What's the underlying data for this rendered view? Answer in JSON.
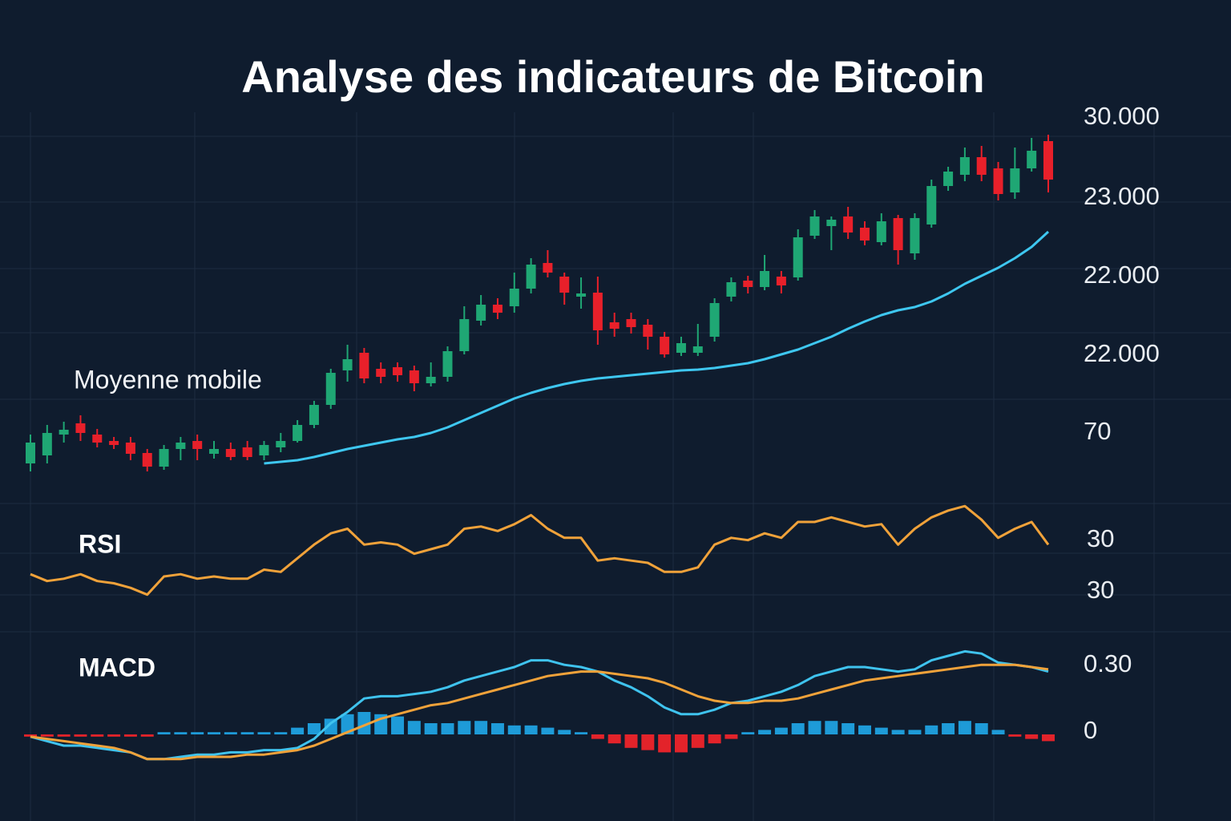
{
  "chart_data": [
    {
      "type": "candlestick",
      "title": "Analyse des indicateurs de Bitcoin",
      "categories": [
        null,
        null,
        null,
        null,
        null,
        null,
        null,
        null,
        null,
        null,
        null,
        null,
        null,
        null,
        null,
        null,
        null,
        null,
        null,
        null,
        null,
        null,
        null,
        null,
        null,
        null,
        null,
        null,
        null,
        null,
        null,
        null,
        null,
        null,
        null,
        null,
        null,
        null,
        null,
        null,
        null,
        null,
        null,
        null,
        null,
        null,
        null,
        null,
        null,
        null,
        null,
        null,
        null,
        null,
        null,
        null,
        null,
        null,
        null,
        null,
        null,
        null
      ],
      "open": [
        20440,
        20640,
        21160,
        21440,
        21160,
        21000,
        20960,
        20700,
        20360,
        20800,
        21000,
        20680,
        20800,
        20840,
        20640,
        20840,
        21000,
        21400,
        21900,
        22760,
        23200,
        22800,
        22840,
        22760,
        22440,
        22600,
        23240,
        24000,
        24400,
        24360,
        24800,
        25440,
        25100,
        24600,
        24700,
        23960,
        24040,
        23900,
        23600,
        23200,
        23200,
        23600,
        24600,
        25000,
        24840,
        25100,
        25080,
        26120,
        26360,
        26600,
        26320,
        25960,
        26560,
        25680,
        26400,
        27360,
        27640,
        28080,
        27800,
        27200,
        27800,
        28480
      ],
      "high": [
        21160,
        21400,
        21480,
        21640,
        21300,
        21100,
        21100,
        20800,
        20900,
        21100,
        21160,
        21000,
        20960,
        21000,
        21000,
        21200,
        21520,
        22000,
        22800,
        23400,
        23320,
        22960,
        22960,
        22880,
        22960,
        23360,
        24360,
        24640,
        24560,
        25200,
        25560,
        25760,
        25200,
        25080,
        25100,
        24200,
        24200,
        24040,
        23720,
        23600,
        23920,
        24560,
        25080,
        25120,
        25640,
        25240,
        26280,
        26760,
        26600,
        26840,
        26480,
        26680,
        26640,
        26680,
        27520,
        27840,
        28320,
        28360,
        27960,
        28320,
        28560,
        28640
      ],
      "low": [
        20240,
        20440,
        20960,
        21000,
        20840,
        20800,
        20520,
        20240,
        20280,
        20520,
        20520,
        20560,
        20520,
        20520,
        20520,
        20720,
        20960,
        21320,
        21800,
        22480,
        22440,
        22440,
        22480,
        22240,
        22360,
        22480,
        23160,
        23880,
        24040,
        24200,
        24680,
        25080,
        24400,
        24300,
        23400,
        23600,
        23680,
        23280,
        23080,
        23120,
        23120,
        23480,
        24480,
        24680,
        24760,
        24680,
        25000,
        26040,
        25760,
        26040,
        25880,
        25880,
        25400,
        25520,
        26320,
        27240,
        27480,
        27480,
        27000,
        27040,
        27720,
        27200
      ],
      "close": [
        20960,
        21200,
        21280,
        21200,
        20960,
        20900,
        20680,
        20360,
        20800,
        20960,
        20800,
        20800,
        20600,
        20600,
        20900,
        21000,
        21400,
        21900,
        22700,
        23040,
        22560,
        22600,
        22640,
        22440,
        22600,
        23240,
        24040,
        24400,
        24200,
        24800,
        25400,
        25200,
        24700,
        24680,
        23760,
        23800,
        23840,
        23600,
        23160,
        23440,
        23360,
        24440,
        24960,
        24840,
        25240,
        24880,
        26080,
        26600,
        26520,
        26200,
        26000,
        26480,
        25760,
        26560,
        27360,
        27720,
        28080,
        27640,
        27160,
        27800,
        28240,
        27520
      ],
      "up_color": "#1fa774",
      "down_color": "#e8202a",
      "ylim": [
        20000,
        30000
      ],
      "right_labels": [
        "30.000",
        "23.000",
        "22.000",
        "22.000",
        "70"
      ],
      "series": [
        {
          "name": "Moyenne mobile",
          "color": "#3ec7f0",
          "values": [
            null,
            null,
            null,
            null,
            null,
            null,
            null,
            null,
            null,
            null,
            null,
            null,
            null,
            null,
            20440,
            20480,
            20520,
            20600,
            20700,
            20800,
            20880,
            20960,
            21040,
            21100,
            21200,
            21340,
            21520,
            21700,
            21880,
            22060,
            22200,
            22320,
            22420,
            22500,
            22560,
            22600,
            22640,
            22680,
            22720,
            22760,
            22780,
            22820,
            22880,
            22940,
            23040,
            23160,
            23280,
            23440,
            23600,
            23800,
            23980,
            24140,
            24260,
            24340,
            24480,
            24680,
            24920,
            25120,
            25320,
            25560,
            25840,
            26220
          ]
        }
      ]
    },
    {
      "type": "line",
      "title": "RSI",
      "categories": [
        null,
        null,
        null,
        null,
        null,
        null,
        null,
        null,
        null,
        null,
        null,
        null,
        null,
        null,
        null,
        null,
        null,
        null,
        null,
        null,
        null,
        null,
        null,
        null,
        null,
        null,
        null,
        null,
        null,
        null,
        null,
        null,
        null,
        null,
        null,
        null,
        null,
        null,
        null,
        null,
        null,
        null,
        null,
        null,
        null,
        null,
        null,
        null,
        null,
        null,
        null,
        null,
        null,
        null,
        null,
        null,
        null,
        null,
        null,
        null,
        null,
        null
      ],
      "ylim": [
        20,
        80
      ],
      "right_labels": [
        "30",
        "30"
      ],
      "series": [
        {
          "color": "#f0a23a",
          "values": [
            39,
            36,
            37,
            39,
            36,
            35,
            33,
            30,
            38,
            39,
            37,
            38,
            37,
            37,
            41,
            40,
            46,
            52,
            57,
            59,
            52,
            53,
            52,
            48,
            50,
            52,
            59,
            60,
            58,
            61,
            65,
            59,
            55,
            55,
            45,
            46,
            45,
            44,
            40,
            40,
            42,
            52,
            55,
            54,
            57,
            55,
            62,
            62,
            64,
            62,
            60,
            61,
            52,
            59,
            64,
            67,
            69,
            63,
            55,
            59,
            62,
            52
          ]
        }
      ]
    },
    {
      "type": "line",
      "title": "MACD",
      "categories": [
        null,
        null,
        null,
        null,
        null,
        null,
        null,
        null,
        null,
        null,
        null,
        null,
        null,
        null,
        null,
        null,
        null,
        null,
        null,
        null,
        null,
        null,
        null,
        null,
        null,
        null,
        null,
        null,
        null,
        null,
        null,
        null,
        null,
        null,
        null,
        null,
        null,
        null,
        null,
        null,
        null,
        null,
        null,
        null,
        null,
        null,
        null,
        null,
        null,
        null,
        null,
        null,
        null,
        null,
        null,
        null,
        null,
        null,
        null,
        null,
        null,
        null
      ],
      "ylim": [
        -0.3,
        0.45
      ],
      "right_labels": [
        "0.30",
        "0"
      ],
      "series": [
        {
          "type": "bar",
          "color": "#1e9bd8",
          "negative_color": "#e3232a",
          "values": [
            -0.01,
            -0.01,
            -0.01,
            -0.01,
            -0.01,
            -0.01,
            -0.01,
            -0.01,
            0.01,
            0.01,
            0.01,
            0.01,
            0.01,
            0.01,
            0.01,
            0.01,
            0.03,
            0.05,
            0.07,
            0.09,
            0.1,
            0.09,
            0.08,
            0.06,
            0.05,
            0.05,
            0.06,
            0.06,
            0.05,
            0.04,
            0.04,
            0.03,
            0.02,
            0.01,
            -0.02,
            -0.04,
            -0.06,
            -0.07,
            -0.08,
            -0.08,
            -0.06,
            -0.04,
            -0.02,
            0.01,
            0.02,
            0.03,
            0.05,
            0.06,
            0.06,
            0.05,
            0.04,
            0.03,
            0.02,
            0.02,
            0.04,
            0.05,
            0.06,
            0.05,
            0.02,
            -0.01,
            -0.02,
            -0.03
          ]
        },
        {
          "type": "line",
          "color": "#3fc3ee",
          "values": [
            -0.01,
            -0.03,
            -0.05,
            -0.05,
            -0.06,
            -0.07,
            -0.08,
            -0.11,
            -0.11,
            -0.1,
            -0.09,
            -0.09,
            -0.08,
            -0.08,
            -0.07,
            -0.07,
            -0.06,
            -0.02,
            0.05,
            0.1,
            0.16,
            0.17,
            0.17,
            0.18,
            0.19,
            0.21,
            0.24,
            0.26,
            0.28,
            0.3,
            0.33,
            0.33,
            0.31,
            0.3,
            0.28,
            0.24,
            0.21,
            0.17,
            0.12,
            0.09,
            0.09,
            0.11,
            0.14,
            0.15,
            0.17,
            0.19,
            0.22,
            0.26,
            0.28,
            0.3,
            0.3,
            0.29,
            0.28,
            0.29,
            0.33,
            0.35,
            0.37,
            0.36,
            0.32,
            0.31,
            0.3,
            0.28
          ]
        },
        {
          "type": "line",
          "color": "#f0a23a",
          "values": [
            -0.01,
            -0.02,
            -0.03,
            -0.04,
            -0.05,
            -0.06,
            -0.08,
            -0.11,
            -0.11,
            -0.11,
            -0.1,
            -0.1,
            -0.1,
            -0.09,
            -0.09,
            -0.08,
            -0.07,
            -0.05,
            -0.02,
            0.01,
            0.04,
            0.07,
            0.09,
            0.11,
            0.13,
            0.14,
            0.16,
            0.18,
            0.2,
            0.22,
            0.24,
            0.26,
            0.27,
            0.28,
            0.28,
            0.27,
            0.26,
            0.25,
            0.23,
            0.2,
            0.17,
            0.15,
            0.14,
            0.14,
            0.15,
            0.15,
            0.16,
            0.18,
            0.2,
            0.22,
            0.24,
            0.25,
            0.26,
            0.27,
            0.28,
            0.29,
            0.3,
            0.31,
            0.31,
            0.31,
            0.3,
            0.29
          ]
        }
      ]
    }
  ]
}
